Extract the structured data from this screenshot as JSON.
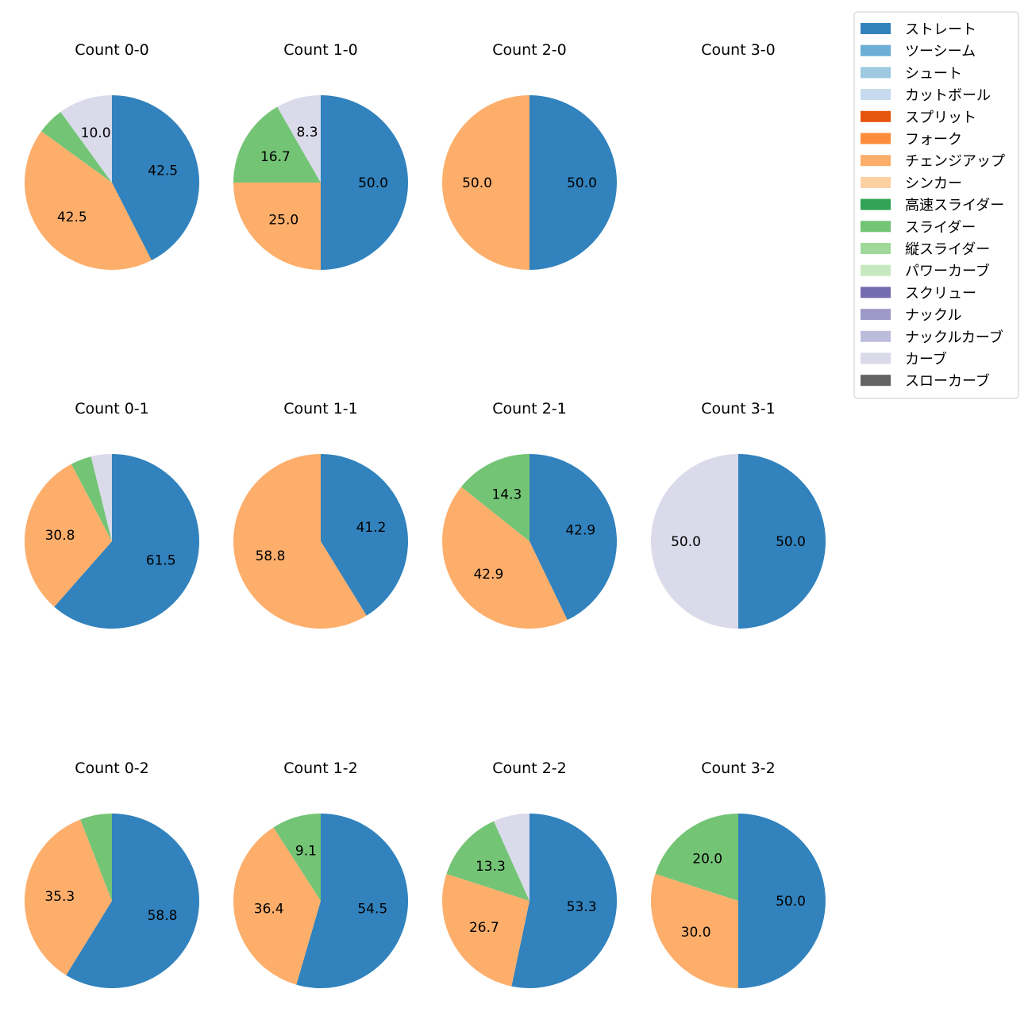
{
  "chart_data": {
    "type": "pie",
    "value_unit": "percent",
    "start_angle": "12 o'clock",
    "direction": "clockwise",
    "legend": {
      "placement": "top-right",
      "entries": [
        {
          "label": "ストレート",
          "color": "#3182bd"
        },
        {
          "label": "ツーシーム",
          "color": "#6baed6"
        },
        {
          "label": "シュート",
          "color": "#9ecae1"
        },
        {
          "label": "カットボール",
          "color": "#c6dbef"
        },
        {
          "label": "スプリット",
          "color": "#e6550d"
        },
        {
          "label": "フォーク",
          "color": "#fd8d3c"
        },
        {
          "label": "チェンジアップ",
          "color": "#fdae6b"
        },
        {
          "label": "シンカー",
          "color": "#fdd0a2"
        },
        {
          "label": "高速スライダー",
          "color": "#31a354"
        },
        {
          "label": "スライダー",
          "color": "#74c476"
        },
        {
          "label": "縦スライダー",
          "color": "#a1d99b"
        },
        {
          "label": "パワーカーブ",
          "color": "#c7e9c0"
        },
        {
          "label": "スクリュー",
          "color": "#756bb1"
        },
        {
          "label": "ナックル",
          "color": "#9e9ac8"
        },
        {
          "label": "ナックルカーブ",
          "color": "#bcbddc"
        },
        {
          "label": "カーブ",
          "color": "#dadaeb"
        },
        {
          "label": "スローカーブ",
          "color": "#636363"
        }
      ]
    },
    "panels": [
      {
        "title": "Count 0-0",
        "slices": [
          {
            "pitch": "ストレート",
            "value": 42.5,
            "label": "42.5"
          },
          {
            "pitch": "チェンジアップ",
            "value": 42.5,
            "label": "42.5"
          },
          {
            "pitch": "スライダー",
            "value": 5.0,
            "label": ""
          },
          {
            "pitch": "カーブ",
            "value": 10.0,
            "label": "10.0"
          }
        ]
      },
      {
        "title": "Count 1-0",
        "slices": [
          {
            "pitch": "ストレート",
            "value": 50.0,
            "label": "50.0"
          },
          {
            "pitch": "チェンジアップ",
            "value": 25.0,
            "label": "25.0"
          },
          {
            "pitch": "スライダー",
            "value": 16.7,
            "label": "16.7"
          },
          {
            "pitch": "カーブ",
            "value": 8.3,
            "label": "8.3"
          }
        ]
      },
      {
        "title": "Count 2-0",
        "slices": [
          {
            "pitch": "ストレート",
            "value": 50.0,
            "label": "50.0"
          },
          {
            "pitch": "チェンジアップ",
            "value": 50.0,
            "label": "50.0"
          }
        ]
      },
      {
        "title": "Count 3-0",
        "slices": []
      },
      {
        "title": "Count 0-1",
        "slices": [
          {
            "pitch": "ストレート",
            "value": 61.5,
            "label": "61.5"
          },
          {
            "pitch": "チェンジアップ",
            "value": 30.8,
            "label": "30.8"
          },
          {
            "pitch": "スライダー",
            "value": 3.85,
            "label": ""
          },
          {
            "pitch": "カーブ",
            "value": 3.85,
            "label": ""
          }
        ]
      },
      {
        "title": "Count 1-1",
        "slices": [
          {
            "pitch": "ストレート",
            "value": 41.2,
            "label": "41.2"
          },
          {
            "pitch": "チェンジアップ",
            "value": 58.8,
            "label": "58.8"
          }
        ]
      },
      {
        "title": "Count 2-1",
        "slices": [
          {
            "pitch": "ストレート",
            "value": 42.9,
            "label": "42.9"
          },
          {
            "pitch": "チェンジアップ",
            "value": 42.9,
            "label": "42.9"
          },
          {
            "pitch": "スライダー",
            "value": 14.3,
            "label": "14.3"
          }
        ]
      },
      {
        "title": "Count 3-1",
        "slices": [
          {
            "pitch": "ストレート",
            "value": 50.0,
            "label": "50.0"
          },
          {
            "pitch": "カーブ",
            "value": 50.0,
            "label": "50.0"
          }
        ]
      },
      {
        "title": "Count 0-2",
        "slices": [
          {
            "pitch": "ストレート",
            "value": 58.8,
            "label": "58.8"
          },
          {
            "pitch": "チェンジアップ",
            "value": 35.3,
            "label": "35.3"
          },
          {
            "pitch": "スライダー",
            "value": 5.9,
            "label": ""
          }
        ]
      },
      {
        "title": "Count 1-2",
        "slices": [
          {
            "pitch": "ストレート",
            "value": 54.5,
            "label": "54.5"
          },
          {
            "pitch": "チェンジアップ",
            "value": 36.4,
            "label": "36.4"
          },
          {
            "pitch": "スライダー",
            "value": 9.1,
            "label": "9.1"
          }
        ]
      },
      {
        "title": "Count 2-2",
        "slices": [
          {
            "pitch": "ストレート",
            "value": 53.3,
            "label": "53.3"
          },
          {
            "pitch": "チェンジアップ",
            "value": 26.7,
            "label": "26.7"
          },
          {
            "pitch": "スライダー",
            "value": 13.3,
            "label": "13.3"
          },
          {
            "pitch": "カーブ",
            "value": 6.7,
            "label": ""
          }
        ]
      },
      {
        "title": "Count 3-2",
        "slices": [
          {
            "pitch": "ストレート",
            "value": 50.0,
            "label": "50.0"
          },
          {
            "pitch": "チェンジアップ",
            "value": 30.0,
            "label": "30.0"
          },
          {
            "pitch": "スライダー",
            "value": 20.0,
            "label": "20.0"
          }
        ]
      }
    ]
  }
}
